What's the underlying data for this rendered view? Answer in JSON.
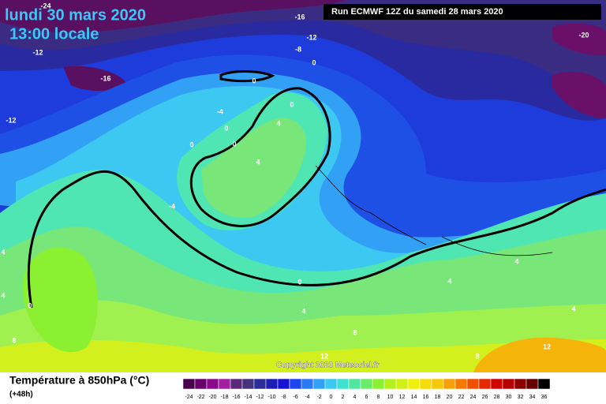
{
  "header": {
    "date": "lundi 30 mars 2020",
    "time": "13:00 locale",
    "run": "Run ECMWF 12Z du samedi 28 mars 2020"
  },
  "map": {
    "contour_labels": [
      -24,
      -16,
      -12,
      -8,
      0,
      -20,
      -12,
      -16,
      -12,
      0,
      0,
      -4,
      4,
      0,
      0,
      0,
      4,
      -4,
      4,
      4,
      0,
      0,
      4,
      8,
      4,
      4,
      4,
      8,
      12,
      8,
      12
    ],
    "copyright": "Copyright 2020 Meteociel.fr"
  },
  "legend": {
    "title": "Température à 850hPa (°C)",
    "lead": "(+48h)",
    "scale": [
      -24,
      -22,
      -20,
      -18,
      -16,
      -14,
      -12,
      -10,
      -8,
      -6,
      -4,
      -2,
      0,
      2,
      4,
      6,
      8,
      10,
      12,
      14,
      16,
      18,
      20,
      22,
      24,
      26,
      28,
      30,
      32,
      34,
      36
    ],
    "colors": [
      "#4b004b",
      "#6a006a",
      "#8a0a8a",
      "#a020a0",
      "#5a2a7a",
      "#46327e",
      "#2c2c9a",
      "#1e1eb4",
      "#1414d2",
      "#1e46f0",
      "#2a7af5",
      "#32a0f5",
      "#3cc8f0",
      "#40e0d0",
      "#50e6a0",
      "#6aeb6a",
      "#8cf032",
      "#b4f01e",
      "#d2f014",
      "#f0f00a",
      "#f5dc0a",
      "#f5c80a",
      "#f5a00a",
      "#f57800",
      "#f05000",
      "#e62800",
      "#d20000",
      "#b40000",
      "#8c0000",
      "#640000",
      "#000000"
    ]
  }
}
